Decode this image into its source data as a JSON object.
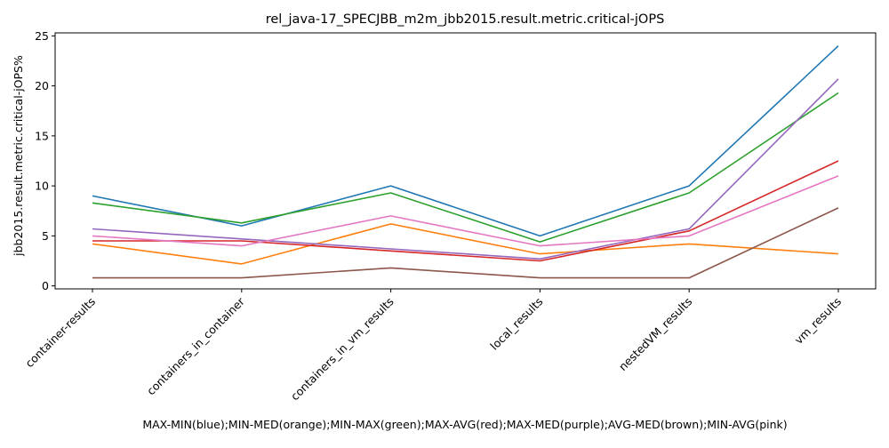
{
  "chart_data": {
    "type": "line",
    "title": "rel_java-17_SPECJBB_m2m_jbb2015.result.metric.critical-jOPS",
    "xlabel": "MAX-MIN(blue);MIN-MED(orange);MIN-MAX(green);MAX-AVG(red);MAX-MED(purple);AVG-MED(brown);MIN-AVG(pink)",
    "ylabel": "jbb2015.result.metric.critical-jOPS%",
    "categories": [
      "container-results",
      "containers_in_container",
      "containers_in_vm_results",
      "local_results",
      "nestedVM_results",
      "vm_results"
    ],
    "yticks": [
      0,
      5,
      10,
      15,
      20,
      25
    ],
    "ylim": [
      -0.3,
      25.3
    ],
    "grid": false,
    "series": [
      {
        "color": "#1f77b4",
        "values": [
          9.0,
          6.0,
          10.0,
          5.0,
          10.0,
          24.0
        ]
      },
      {
        "color": "#ff7f0e",
        "values": [
          4.2,
          2.2,
          6.2,
          3.2,
          4.2,
          3.2
        ]
      },
      {
        "color": "#2ca02c",
        "values": [
          8.3,
          6.3,
          9.3,
          4.4,
          9.3,
          19.3
        ]
      },
      {
        "color": "#d62728",
        "values": [
          4.5,
          4.5,
          3.5,
          2.5,
          5.5,
          12.5
        ]
      },
      {
        "color": "#9467bd",
        "values": [
          5.7,
          4.7,
          3.7,
          2.7,
          5.7,
          20.7
        ]
      },
      {
        "color": "#8c564b",
        "values": [
          0.8,
          0.8,
          1.8,
          0.8,
          0.8,
          7.8
        ]
      },
      {
        "color": "#e377c2",
        "values": [
          5.0,
          4.0,
          7.0,
          4.0,
          5.0,
          11.0
        ]
      }
    ]
  }
}
